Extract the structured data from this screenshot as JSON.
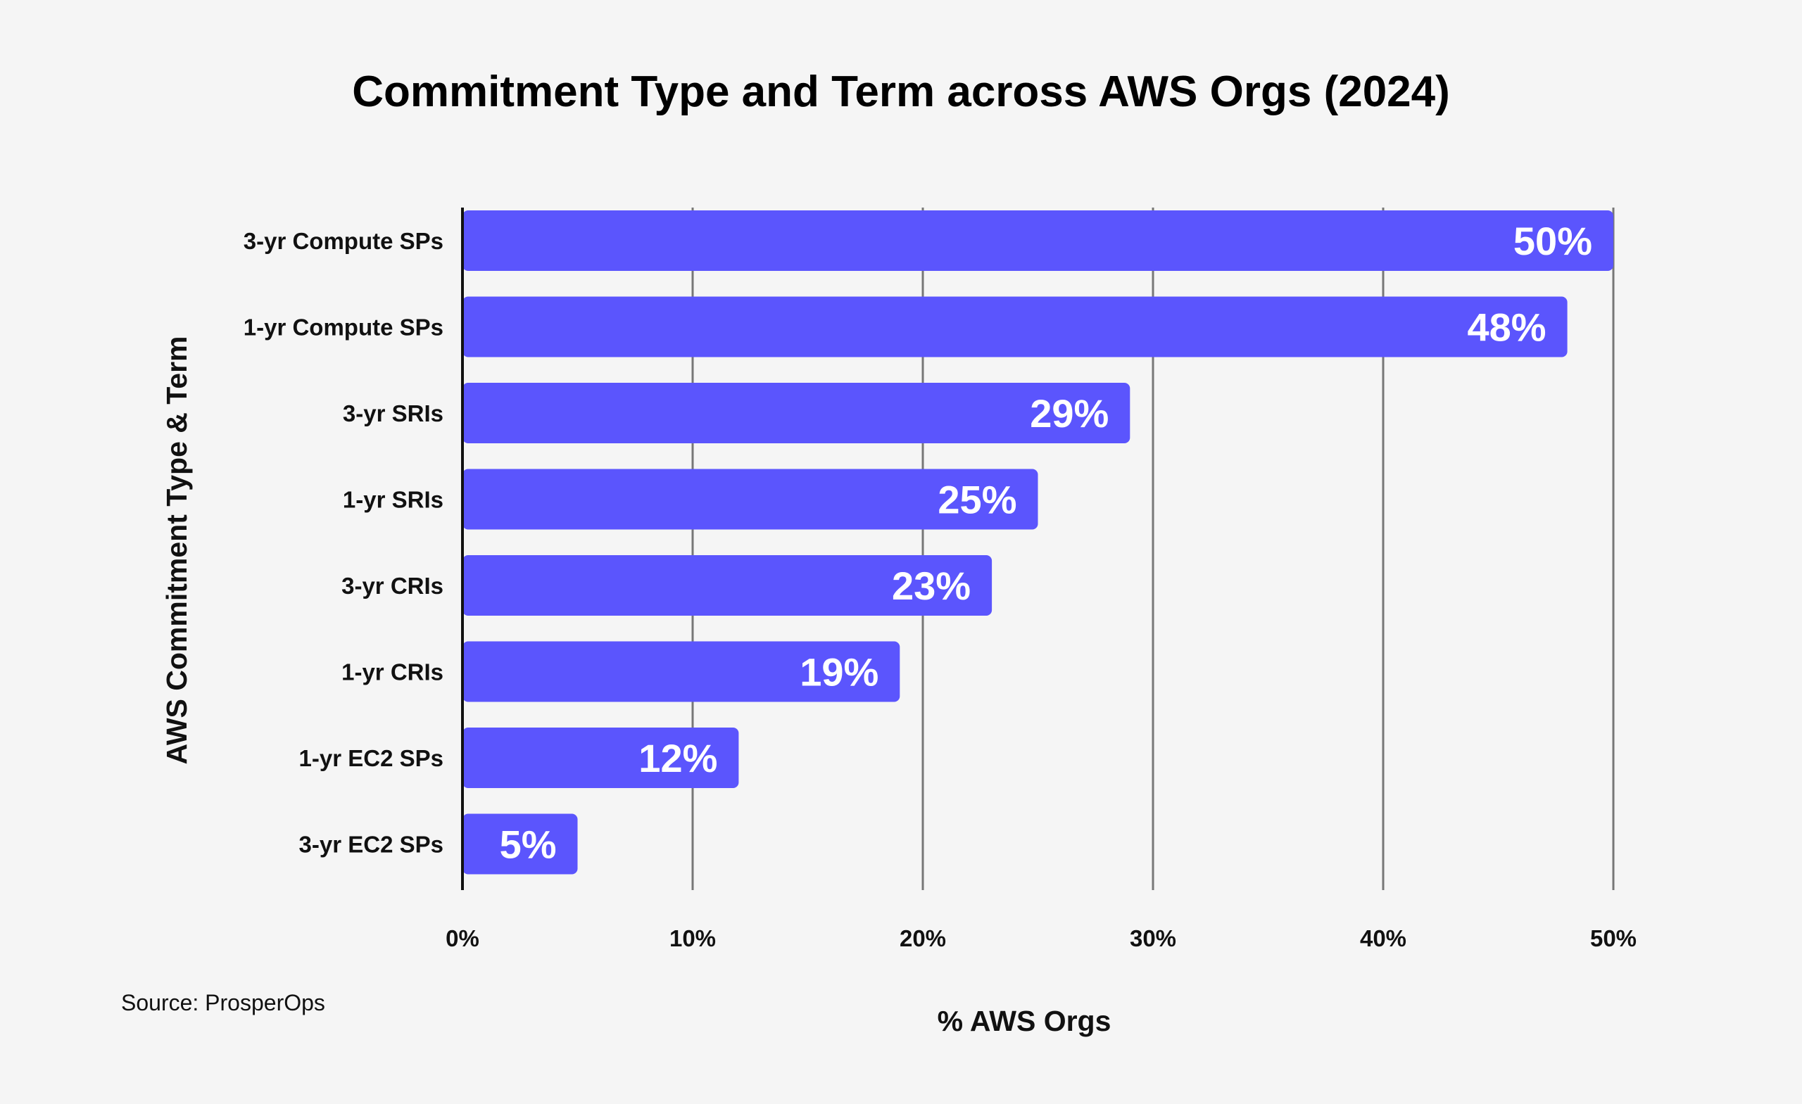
{
  "title": "Commitment Type and Term across AWS Orgs (2024)",
  "source": "Source: ProsperOps",
  "colors": {
    "bar": "#5b55fd",
    "grid": "#777777",
    "axis": "#111111"
  },
  "chart_data": {
    "type": "bar",
    "orientation": "horizontal",
    "title": "Commitment Type and Term across AWS Orgs (2024)",
    "xlabel": "% AWS Orgs",
    "ylabel": "AWS Commitment Type & Term",
    "categories": [
      "3-yr Compute SPs",
      "1-yr Compute SPs",
      "3-yr SRIs",
      "1-yr SRIs",
      "3-yr CRIs",
      "1-yr CRIs",
      "1-yr EC2 SPs",
      "3-yr EC2 SPs"
    ],
    "values": [
      50,
      48,
      29,
      25,
      23,
      19,
      12,
      5
    ],
    "value_labels": [
      "50%",
      "48%",
      "29%",
      "25%",
      "23%",
      "19%",
      "12%",
      "5%"
    ],
    "xlim": [
      0,
      50
    ],
    "xticks": [
      0,
      10,
      20,
      30,
      40,
      50
    ],
    "xtick_labels": [
      "0%",
      "10%",
      "20%",
      "30%",
      "40%",
      "50%"
    ],
    "grid": "vertical"
  }
}
